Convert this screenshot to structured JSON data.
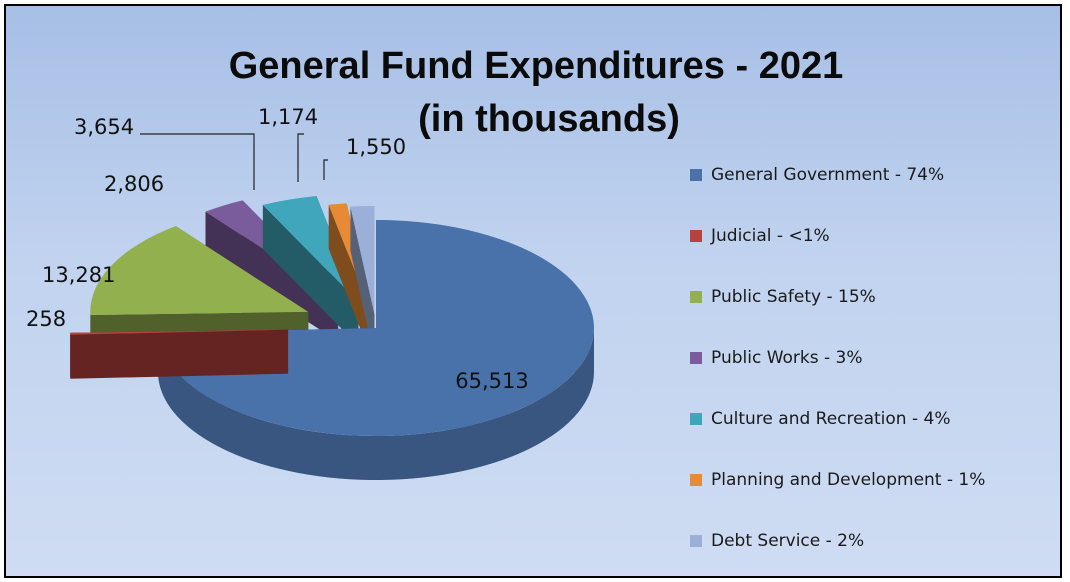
{
  "chart_data": {
    "type": "pie",
    "title_line1": "General Fund Expenditures - 2021",
    "title_line2": "(in thousands)",
    "three_d": true,
    "exploded": true,
    "legend_position": "right",
    "slices": [
      {
        "name": "General Government",
        "value": 65513,
        "value_label": "65,513",
        "legend_label": "General Government - 74%",
        "color": "#4a72aa"
      },
      {
        "name": "Judicial",
        "value": 258,
        "value_label": "258",
        "legend_label": "Judicial - <1%",
        "color": "#b8423d"
      },
      {
        "name": "Public Safety",
        "value": 13281,
        "value_label": "13,281",
        "legend_label": "Public Safety - 15%",
        "color": "#92b04e"
      },
      {
        "name": "Public Works",
        "value": 2806,
        "value_label": "2,806",
        "legend_label": "Public Works - 3%",
        "color": "#7a5b9c"
      },
      {
        "name": "Culture and Recreation",
        "value": 3654,
        "value_label": "3,654",
        "legend_label": "Culture and Recreation - 4%",
        "color": "#3fa6bc"
      },
      {
        "name": "Planning and Development",
        "value": 1174,
        "value_label": "1,174",
        "legend_label": "Planning and Development - 1%",
        "color": "#e68a36"
      },
      {
        "name": "Debt Service",
        "value": 1550,
        "value_label": "1,550",
        "legend_label": "Debt Service - 2%",
        "color": "#9bb0d8"
      }
    ]
  }
}
